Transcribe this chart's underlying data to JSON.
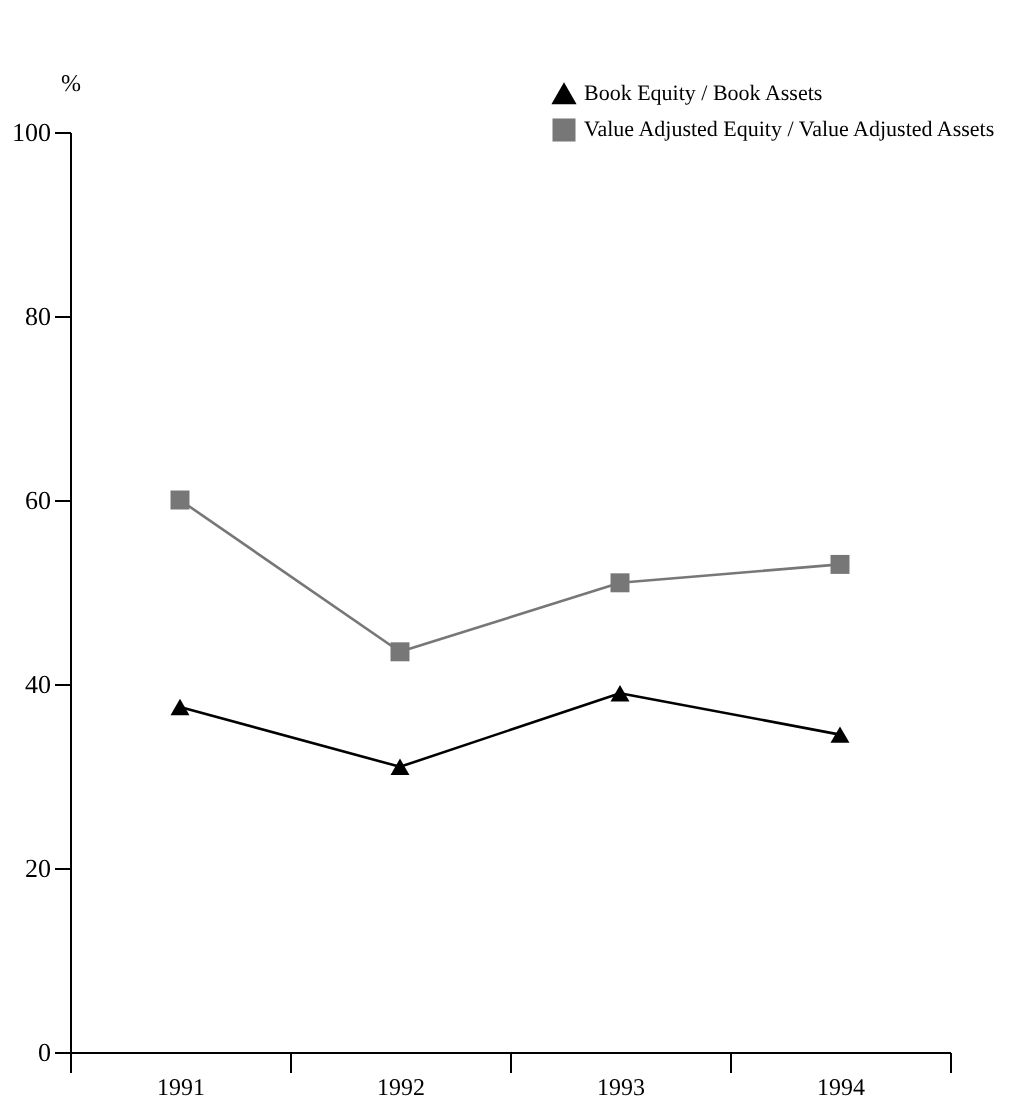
{
  "chart_data": {
    "type": "line",
    "ylabel": "%",
    "categories": [
      "1991",
      "1992",
      "1993",
      "1994"
    ],
    "series": [
      {
        "name": "Book Equity / Book Assets",
        "color": "#000000",
        "marker": "triangle",
        "values": [
          37.5,
          31,
          39,
          34.5
        ]
      },
      {
        "name": "Value Adjusted Equity / Value Adjusted Assets",
        "color": "#777777",
        "marker": "square",
        "values": [
          60,
          43.5,
          51,
          53
        ]
      }
    ],
    "ylim": [
      0,
      100
    ],
    "yticks": [
      0,
      20,
      40,
      60,
      80,
      100
    ],
    "grid": false,
    "legend": "top right",
    "line_style": "solid"
  }
}
